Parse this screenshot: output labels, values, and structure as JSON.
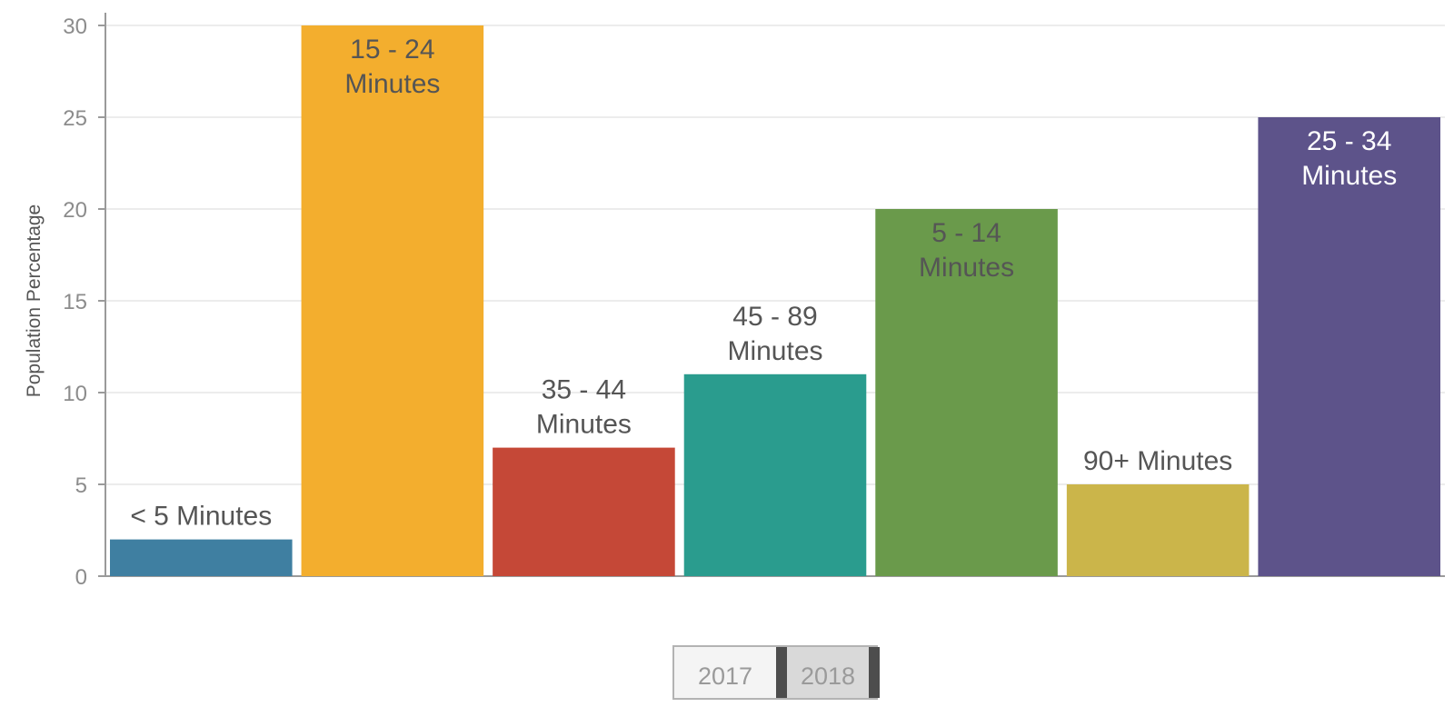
{
  "chart_data": {
    "type": "bar",
    "categories": [
      "< 5 Minutes",
      "15 - 24\nMinutes",
      "35 - 44\nMinutes",
      "45 - 89\nMinutes",
      "5 - 14\nMinutes",
      "90+ Minutes",
      "25 - 34\nMinutes"
    ],
    "values": [
      2,
      30,
      7,
      11,
      20,
      5,
      25
    ],
    "colors": [
      "#3f7fa1",
      "#f3ae2e",
      "#c54837",
      "#2a9c8e",
      "#6a9a4b",
      "#cbb54a",
      "#5d538a"
    ],
    "label_colors": [
      "#555555",
      "#555555",
      "#555555",
      "#555555",
      "#555555",
      "#555555",
      "#ffffff"
    ],
    "labels_inside": [
      false,
      true,
      false,
      false,
      true,
      false,
      true
    ],
    "ylabel": "Population Percentage",
    "xlabel": "",
    "ylim": [
      0,
      30
    ],
    "yticks": [
      0,
      5,
      10,
      15,
      20,
      25,
      30
    ],
    "grid": true,
    "legend": "none"
  },
  "year_selector": {
    "years": [
      "2017",
      "2018"
    ],
    "selected": "2018"
  }
}
